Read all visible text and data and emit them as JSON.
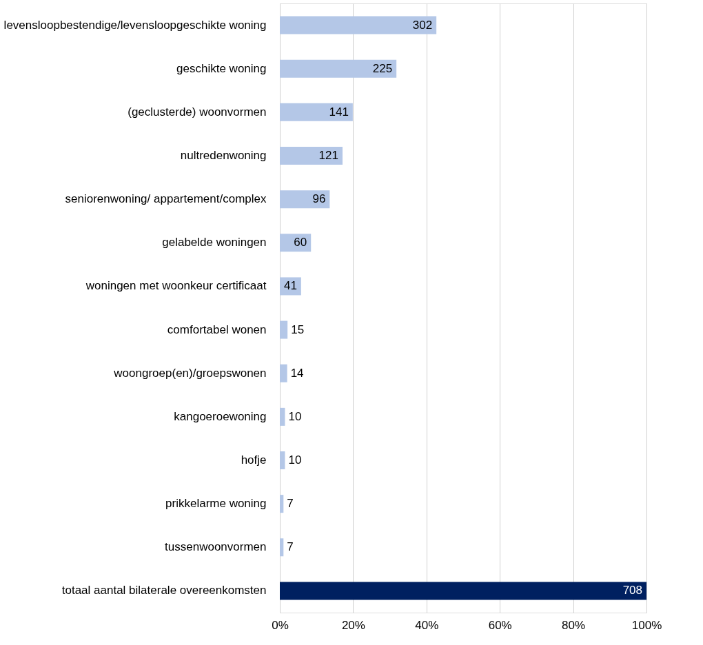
{
  "chart_data": {
    "type": "bar",
    "orientation": "horizontal",
    "categories": [
      "levensloopbestendige/levensloopgeschikte woning",
      "geschikte woning",
      "(geclusterde) woonvormen",
      "nultredenwoning",
      "seniorenwoning/ appartement/complex",
      "gelabelde woningen",
      "woningen met woonkeur certificaat",
      "comfortabel wonen",
      "woongroep(en)/groepswonen",
      "kangoeroewoning",
      "hofje",
      "prikkelarme woning",
      "tussenwoonvormen",
      "totaal aantal bilaterale overeenkomsten"
    ],
    "values": [
      42.7,
      31.8,
      19.9,
      17.1,
      13.6,
      8.5,
      5.8,
      2.1,
      2.0,
      1.4,
      1.4,
      1.0,
      1.0,
      100
    ],
    "colors": [
      "#b4c7e7",
      "#b4c7e7",
      "#b4c7e7",
      "#b4c7e7",
      "#b4c7e7",
      "#b4c7e7",
      "#b4c7e7",
      "#b4c7e7",
      "#b4c7e7",
      "#b4c7e7",
      "#b4c7e7",
      "#b4c7e7",
      "#b4c7e7",
      "#002060"
    ],
    "annotations": [
      {
        "text": "302",
        "x": 42.7,
        "y": "levensloopbestendige/levensloopgeschikte woning"
      },
      {
        "text": "225",
        "x": 31.8,
        "y": "geschikte woning"
      },
      {
        "text": "141",
        "x": 19.9,
        "y": "(geclusterde) woonvormen"
      },
      {
        "text": "121",
        "x": 17.1,
        "y": "nultredenwoning"
      },
      {
        "text": "96",
        "x": 13.6,
        "y": "seniorenwoning/ appartement/complex"
      },
      {
        "text": "60",
        "x": 8.5,
        "y": "gelabelde woningen"
      },
      {
        "text": "41",
        "x": 5.8,
        "y": "woningen met woonkeur certificaat"
      },
      {
        "text": "15",
        "x": 2.1,
        "y": "comfortabel wonen"
      },
      {
        "text": "14",
        "x": 2.0,
        "y": "woongroep(en)/groepswonen"
      },
      {
        "text": "10",
        "x": 1.4,
        "y": "kangoeroewoning"
      },
      {
        "text": "10",
        "x": 1.4,
        "y": "hofje"
      },
      {
        "text": "7",
        "x": 1.0,
        "y": "prikkelarme woning"
      },
      {
        "text": "7",
        "x": 1.0,
        "y": "tussenwoonvormen"
      },
      {
        "text": "708",
        "x": 100,
        "y": "totaal aantal bilaterale overeenkomsten"
      }
    ],
    "xlim": [
      0,
      100
    ],
    "xticks": [
      {
        "value": 0,
        "label": "0%"
      },
      {
        "value": 20,
        "label": "20%"
      },
      {
        "value": 40,
        "label": "40%"
      },
      {
        "value": 60,
        "label": "60%"
      },
      {
        "value": 80,
        "label": "80%"
      },
      {
        "value": 100,
        "label": "100%"
      }
    ],
    "grid": "x"
  }
}
